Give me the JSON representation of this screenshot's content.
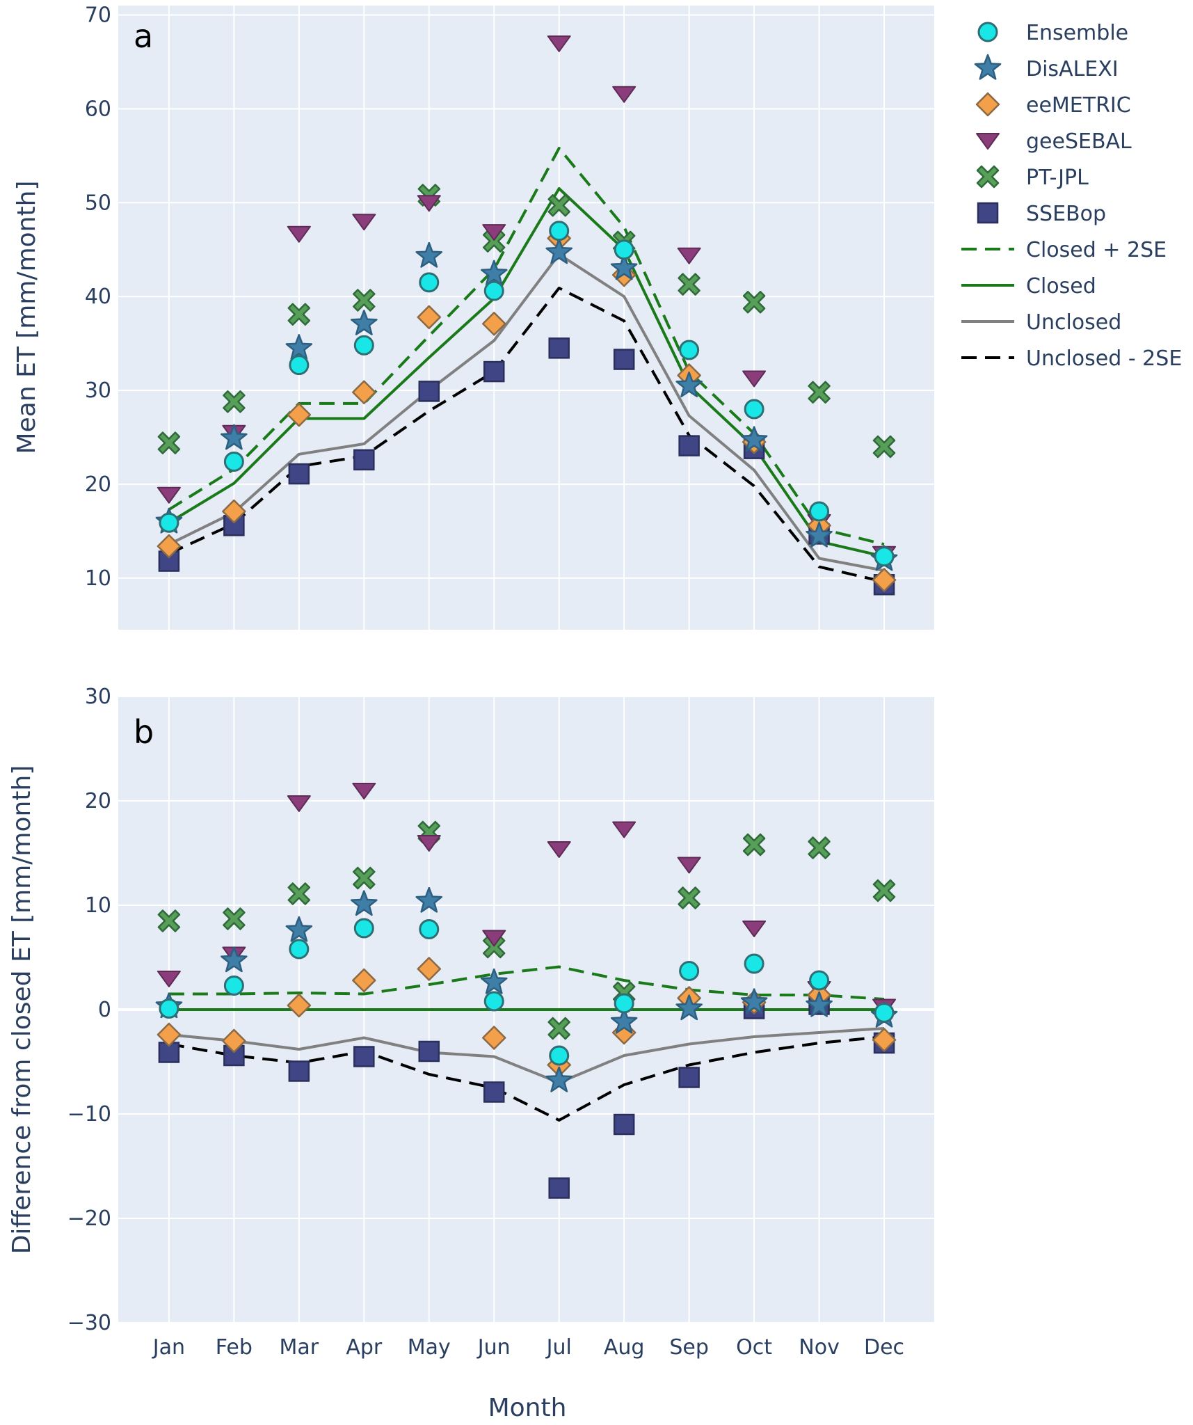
{
  "figure": {
    "xlabel": "Month"
  },
  "legend": {
    "entries": [
      {
        "name": "Ensemble",
        "symbol": "circle",
        "color": "#19e6e6"
      },
      {
        "name": "DisALEXI",
        "symbol": "star",
        "color": "#3f7ea6"
      },
      {
        "name": "eeMETRIC",
        "symbol": "diamond",
        "color": "#f4a04a"
      },
      {
        "name": "geeSEBAL",
        "symbol": "triangle-down",
        "color": "#8b3d7b"
      },
      {
        "name": "PT-JPL",
        "symbol": "x",
        "color": "#4f9a4f"
      },
      {
        "name": "SSEBop",
        "symbol": "square",
        "color": "#3f4585"
      },
      {
        "name": "Closed + 2SE",
        "symbol": "line-dash",
        "color": "#1a7a1a"
      },
      {
        "name": "Closed",
        "symbol": "line",
        "color": "#1a7a1a"
      },
      {
        "name": "Unclosed",
        "symbol": "line",
        "color": "#808080"
      },
      {
        "name": "Unclosed - 2SE",
        "symbol": "line-dash",
        "color": "#000000"
      }
    ],
    "placement": "right"
  },
  "chart_data": [
    {
      "type": "scatter",
      "panel_label": "a",
      "ylabel": "Mean ET [mm/month]",
      "categories": [
        "Jan",
        "Feb",
        "Mar",
        "Apr",
        "May",
        "Jun",
        "Jul",
        "Aug",
        "Sep",
        "Oct",
        "Nov",
        "Dec"
      ],
      "ylim": [
        4.5,
        71
      ],
      "yticks": [
        10,
        20,
        30,
        40,
        50,
        60,
        70
      ],
      "grid": true,
      "series": [
        {
          "name": "Ensemble",
          "symbol": "circle",
          "values": [
            15.9,
            22.4,
            32.7,
            34.8,
            41.5,
            40.6,
            47.0,
            45.0,
            34.3,
            28.0,
            17.1,
            12.3
          ]
        },
        {
          "name": "DisALEXI",
          "symbol": "star",
          "values": [
            16.0,
            24.9,
            34.5,
            37.1,
            44.3,
            42.4,
            44.7,
            43.0,
            30.5,
            24.7,
            14.5,
            12.0
          ]
        },
        {
          "name": "eeMETRIC",
          "symbol": "diamond",
          "values": [
            13.4,
            17.1,
            27.4,
            29.8,
            37.8,
            37.1,
            46.2,
            42.3,
            31.6,
            24.5,
            15.6,
            9.8
          ]
        },
        {
          "name": "geeSEBAL",
          "symbol": "triangle-down",
          "values": [
            18.9,
            25.5,
            46.7,
            48.0,
            50.0,
            46.9,
            67.0,
            61.6,
            44.4,
            31.3,
            16.0,
            12.6
          ]
        },
        {
          "name": "PT-JPL",
          "symbol": "x",
          "values": [
            24.4,
            28.8,
            38.1,
            39.6,
            50.8,
            45.9,
            49.7,
            45.8,
            41.3,
            39.4,
            29.8,
            24.0
          ]
        },
        {
          "name": "SSEBop",
          "symbol": "square",
          "values": [
            11.8,
            15.6,
            21.1,
            22.6,
            29.9,
            32.0,
            34.5,
            33.3,
            24.1,
            23.8,
            14.7,
            9.3
          ]
        },
        {
          "name": "Closed + 2SE",
          "line": "dash",
          "values": [
            17.3,
            21.6,
            28.6,
            28.6,
            35.8,
            42.9,
            55.8,
            47.4,
            32.0,
            25.4,
            15.3,
            13.6
          ]
        },
        {
          "name": "Closed",
          "line": "solid",
          "values": [
            15.9,
            20.1,
            27.0,
            27.0,
            33.5,
            39.8,
            51.5,
            45.0,
            30.5,
            24.0,
            13.9,
            12.3
          ]
        },
        {
          "name": "Unclosed",
          "line": "solid",
          "values": [
            13.6,
            17.0,
            23.2,
            24.3,
            30.0,
            35.3,
            44.5,
            40.0,
            27.3,
            21.5,
            12.1,
            10.8
          ]
        },
        {
          "name": "Unclosed - 2SE",
          "line": "dash",
          "values": [
            12.6,
            15.8,
            21.9,
            23.0,
            27.8,
            32.0,
            40.9,
            37.4,
            25.2,
            19.8,
            11.2,
            9.6
          ]
        }
      ]
    },
    {
      "type": "scatter",
      "panel_label": "b",
      "ylabel": "Difference from closed ET [mm/month]",
      "categories": [
        "Jan",
        "Feb",
        "Mar",
        "Apr",
        "May",
        "Jun",
        "Jul",
        "Aug",
        "Sep",
        "Oct",
        "Nov",
        "Dec"
      ],
      "ylim": [
        -30,
        30
      ],
      "yticks": [
        -30,
        -20,
        -10,
        0,
        10,
        20,
        30
      ],
      "ytick_labels": [
        "−30",
        "−20",
        "−10",
        "0",
        "10",
        "20",
        "30"
      ],
      "grid": true,
      "series": [
        {
          "name": "Ensemble",
          "symbol": "circle",
          "values": [
            0.1,
            2.3,
            5.8,
            7.8,
            7.7,
            0.8,
            -4.4,
            0.6,
            3.7,
            4.4,
            2.8,
            -0.3
          ]
        },
        {
          "name": "DisALEXI",
          "symbol": "star",
          "values": [
            0.3,
            4.7,
            7.6,
            10.1,
            10.4,
            2.6,
            -6.8,
            -1.2,
            0.1,
            0.7,
            0.4,
            -0.6
          ]
        },
        {
          "name": "eeMETRIC",
          "symbol": "diamond",
          "values": [
            -2.4,
            -3.0,
            0.4,
            2.8,
            3.9,
            -2.7,
            -5.3,
            -2.2,
            1.1,
            0.7,
            1.4,
            -2.9
          ]
        },
        {
          "name": "geeSEBAL",
          "symbol": "triangle-down",
          "values": [
            3.0,
            5.3,
            19.8,
            21.0,
            16.0,
            6.9,
            15.4,
            17.3,
            13.9,
            7.8,
            2.0,
            0.3
          ]
        },
        {
          "name": "PT-JPL",
          "symbol": "x",
          "values": [
            8.5,
            8.7,
            11.1,
            12.6,
            17.0,
            6.0,
            -1.8,
            1.6,
            10.7,
            15.8,
            15.5,
            11.4
          ]
        },
        {
          "name": "SSEBop",
          "symbol": "square",
          "values": [
            -4.1,
            -4.4,
            -5.9,
            -4.5,
            -4.0,
            -7.9,
            -17.1,
            -11.0,
            -6.5,
            0.1,
            0.5,
            -3.2
          ]
        },
        {
          "name": "Closed + 2SE",
          "line": "dash",
          "values": [
            1.5,
            1.5,
            1.6,
            1.5,
            2.4,
            3.4,
            4.1,
            2.8,
            1.9,
            1.4,
            1.4,
            1.0
          ]
        },
        {
          "name": "Closed",
          "line": "solid",
          "values": [
            0,
            0,
            0,
            0,
            0,
            0,
            0,
            0,
            0,
            0,
            0,
            0
          ]
        },
        {
          "name": "Unclosed",
          "line": "solid",
          "values": [
            -2.4,
            -3.0,
            -3.8,
            -2.7,
            -4.1,
            -4.5,
            -7.0,
            -4.4,
            -3.3,
            -2.6,
            -2.2,
            -1.8
          ]
        },
        {
          "name": "Unclosed - 2SE",
          "line": "dash",
          "values": [
            -3.3,
            -4.4,
            -5.1,
            -4.0,
            -6.2,
            -7.5,
            -10.6,
            -7.2,
            -5.3,
            -4.1,
            -3.2,
            -2.6
          ]
        }
      ]
    }
  ]
}
